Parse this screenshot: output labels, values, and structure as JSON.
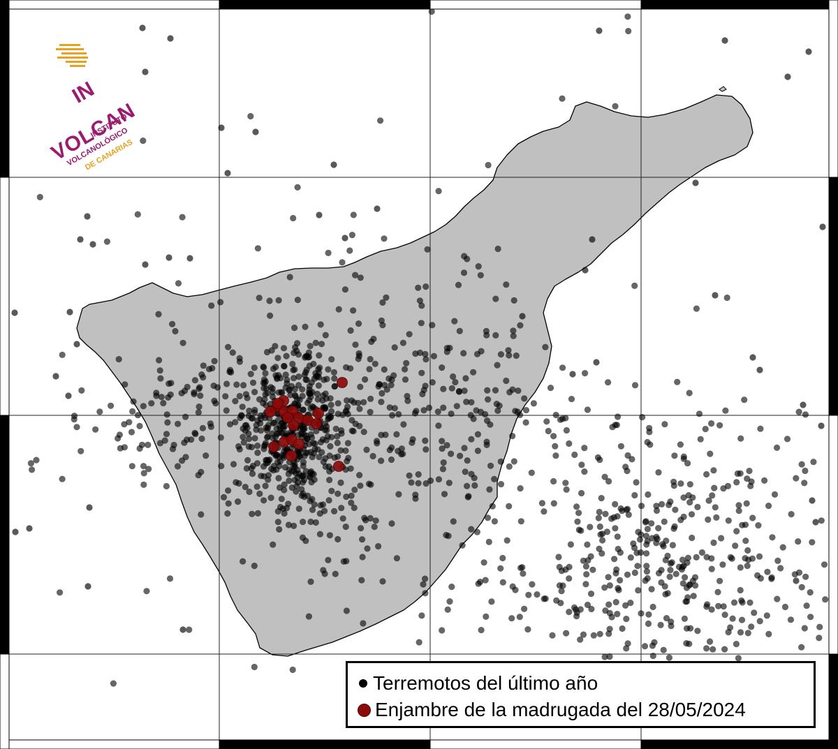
{
  "logo": {
    "brand_line1": "IN",
    "brand_line2": "VOLCAN",
    "line1": "INSTITUTO",
    "line2": "VOLCANOLÓGICO",
    "line3": "DE CANARIAS",
    "colors": {
      "purple": "#9b1b6e",
      "orange": "#e8a120"
    }
  },
  "legend": {
    "items": [
      {
        "label": "Terremotos del último año",
        "symbol": "small-black-dot",
        "color": "#000000"
      },
      {
        "label": "Enjambre de la madrugada del 28/05/2024",
        "symbol": "large-red-dot",
        "color": "#8b0a0a"
      }
    ]
  },
  "map": {
    "island_fill": "#c0c0c0",
    "grid": true,
    "frame": "alternating black/white border",
    "earthquake_color": "#000000",
    "swarm_color": "#8b0a0a"
  }
}
